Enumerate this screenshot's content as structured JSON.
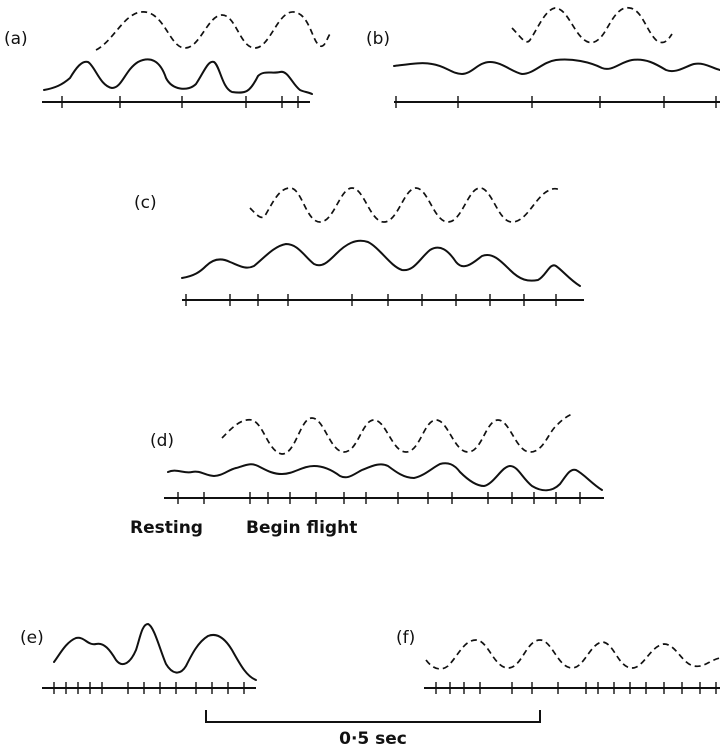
{
  "panels": [
    {
      "id": "a",
      "label": "(a)"
    },
    {
      "id": "b",
      "label": "(b)"
    },
    {
      "id": "c",
      "label": "(c)"
    },
    {
      "id": "d",
      "label": "(d)"
    },
    {
      "id": "e",
      "label": "(e)"
    },
    {
      "id": "f",
      "label": "(f)"
    }
  ],
  "annotations": {
    "resting": "Resting",
    "begin_flight": "Begin flight"
  },
  "scale_bar": {
    "label": "0·5 sec"
  }
}
